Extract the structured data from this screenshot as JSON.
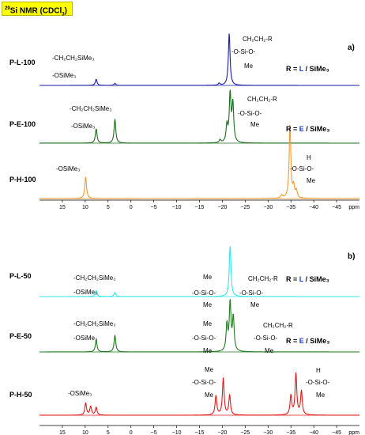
{
  "header": {
    "iso": "29",
    "t1": "Si NMR (CDCl",
    "sub": "3",
    "t2": ")"
  },
  "colors": {
    "L": "#1a1aa6",
    "E": "#1f6b1f",
    "H": "#f29a2e",
    "L50": "#34e6e6",
    "E50": "#1f7a1f",
    "H50": "#e31a1a",
    "blue_text": "#1f3fd6"
  },
  "chart_data": [
    {
      "type": "line",
      "panel_label": "a)",
      "xaxis": {
        "unit": "ppm",
        "reversed": true,
        "xlim": [
          20,
          -50
        ],
        "ticks": [
          15,
          10,
          5,
          0,
          -5,
          -10,
          -15,
          -20,
          -25,
          -30,
          -35,
          -40,
          -45
        ],
        "tick_labels": [
          "15",
          "10",
          "5",
          "0",
          "−5",
          "−10",
          "−15",
          "−20",
          "−25",
          "−30",
          "−35",
          "−40",
          "−45"
        ]
      },
      "series": [
        {
          "name": "P-L-100",
          "color_key": "L",
          "peaks": [
            {
              "ppm": 7.6,
              "height": 0.12
            },
            {
              "ppm": 3.5,
              "height": 0.04
            },
            {
              "ppm": -19.3,
              "height": 0.04
            },
            {
              "ppm": -21.5,
              "height": 1.0
            }
          ],
          "annotations": [
            "-CH₂CH₂SiMe₃",
            "-OSiMe₃",
            "CH₂CH₂-R",
            "-O-Si-O-",
            "Me"
          ],
          "r_label": {
            "pre": "R = ",
            "letter": "L",
            "post": " / SiMe₃"
          }
        },
        {
          "name": "P-E-100",
          "color_key": "E",
          "peaks": [
            {
              "ppm": 7.6,
              "height": 0.3
            },
            {
              "ppm": 3.5,
              "height": 0.5
            },
            {
              "ppm": -19.5,
              "height": 0.06
            },
            {
              "ppm": -21.0,
              "height": 0.35
            },
            {
              "ppm": -21.7,
              "height": 1.0
            },
            {
              "ppm": -22.3,
              "height": 0.8
            }
          ],
          "annotations": [
            "-CH₂CH₂SiMe₃",
            "-OSiMe₃",
            "CH₂CH₂-R",
            "-O-Si-O-",
            "Me"
          ],
          "r_label": {
            "pre": "R = ",
            "letter": "E",
            "post": " / SiMe₃"
          }
        },
        {
          "name": "P-H-100",
          "color_key": "H",
          "peaks": [
            {
              "ppm": 9.9,
              "height": 0.3
            },
            {
              "ppm": -33.0,
              "height": 0.04
            },
            {
              "ppm": -34.8,
              "height": 1.0
            },
            {
              "ppm": -35.6,
              "height": 0.15
            },
            {
              "ppm": -36.2,
              "height": 0.1
            }
          ],
          "annotations": [
            "-OSiMe₃",
            "H",
            "-O-Si-O-",
            "Me"
          ]
        }
      ]
    },
    {
      "type": "line",
      "panel_label": "b)",
      "xaxis": {
        "unit": "ppm",
        "reversed": true,
        "xlim": [
          20,
          -50
        ],
        "ticks": [
          15,
          10,
          5,
          0,
          -5,
          -10,
          -15,
          -20,
          -25,
          -30,
          -35,
          -40,
          -45
        ],
        "tick_labels": [
          "15",
          "10",
          "5",
          "0",
          "−5",
          "−10",
          "−15",
          "−20",
          "−25",
          "−30",
          "−35",
          "−40",
          "−45"
        ]
      },
      "series": [
        {
          "name": "P-L-50",
          "color_key": "L50",
          "peaks": [
            {
              "ppm": 7.6,
              "height": 0.12
            },
            {
              "ppm": 3.5,
              "height": 0.08
            },
            {
              "ppm": -21.7,
              "height": 1.0
            }
          ],
          "annotations": [
            "-CH₂CH₂SiMe₃",
            "-OSiMe₃",
            "Me",
            "-O-Si-O-",
            "Me",
            "CH₂CH₂-R",
            "-O-Si-O-",
            "Me"
          ],
          "r_label": {
            "pre": "R = ",
            "letter": "L",
            "post": " / SiMe₃"
          }
        },
        {
          "name": "P-E-50",
          "color_key": "E50",
          "peaks": [
            {
              "ppm": 7.6,
              "height": 0.25
            },
            {
              "ppm": 3.5,
              "height": 0.35
            },
            {
              "ppm": -21.0,
              "height": 0.55
            },
            {
              "ppm": -21.7,
              "height": 1.0
            },
            {
              "ppm": -22.4,
              "height": 0.7
            }
          ],
          "annotations": [
            "-CH₂CH₂SiMe₃",
            "-OSiMe₃",
            "Me",
            "-O-Si-O-",
            "Me",
            "CH₂CH₂-R",
            "-O-Si-O-",
            "Me"
          ],
          "r_label": {
            "pre": "R = ",
            "letter": "E",
            "post": " / SiMe₃"
          }
        },
        {
          "name": "P-H-50",
          "color_key": "H50",
          "peaks": [
            {
              "ppm": 9.9,
              "height": 0.28
            },
            {
              "ppm": 8.8,
              "height": 0.2
            },
            {
              "ppm": 7.6,
              "height": 0.18
            },
            {
              "ppm": -18.6,
              "height": 0.45
            },
            {
              "ppm": -20.2,
              "height": 0.85
            },
            {
              "ppm": -21.6,
              "height": 0.45
            },
            {
              "ppm": -35.0,
              "height": 0.45
            },
            {
              "ppm": -36.1,
              "height": 0.95
            },
            {
              "ppm": -37.3,
              "height": 0.55
            }
          ],
          "annotations": [
            "-OSiMe₃",
            "Me",
            "-O-Si-O-",
            "Me",
            "H",
            "-O-Si-O-",
            "Me"
          ]
        }
      ]
    }
  ]
}
